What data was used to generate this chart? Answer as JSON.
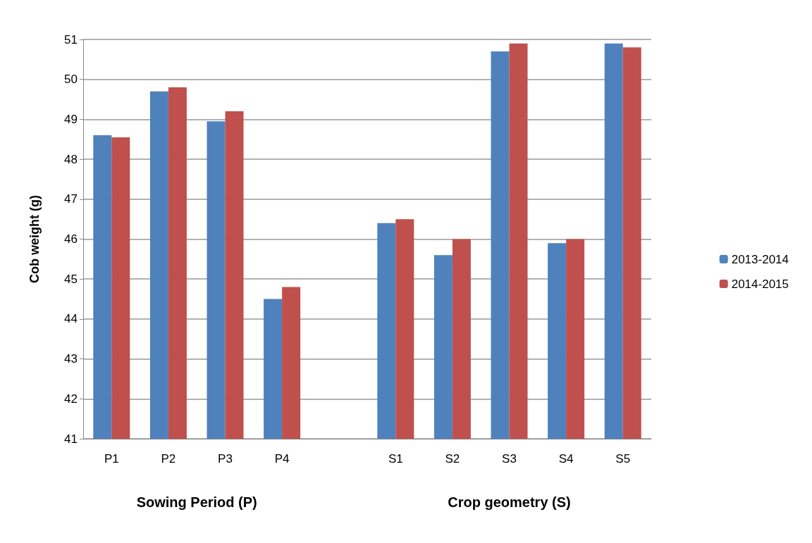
{
  "chart_data": {
    "type": "bar",
    "ylabel": "Cob weight (g)",
    "xlabel": "Sowing Period (P)",
    "annotations": [
      "Crop geometry (S)"
    ],
    "categories": [
      "P1",
      "P2",
      "P3",
      "P4",
      null,
      "S1",
      "S2",
      "S3",
      "S4",
      "S5"
    ],
    "series": [
      {
        "name": "2013-2014",
        "color": "#4f81bd",
        "values": [
          48.6,
          49.7,
          48.95,
          44.5,
          null,
          46.4,
          45.6,
          50.7,
          45.9,
          50.9
        ]
      },
      {
        "name": "2014-2015",
        "color": "#c0504d",
        "values": [
          48.55,
          49.8,
          49.2,
          44.8,
          null,
          46.5,
          46.0,
          50.9,
          46.0,
          50.8
        ]
      }
    ],
    "ylim": [
      41,
      51
    ],
    "yticks": [
      41,
      42,
      43,
      44,
      45,
      46,
      47,
      48,
      49,
      50,
      51
    ],
    "grid": "y",
    "legend": "right"
  }
}
